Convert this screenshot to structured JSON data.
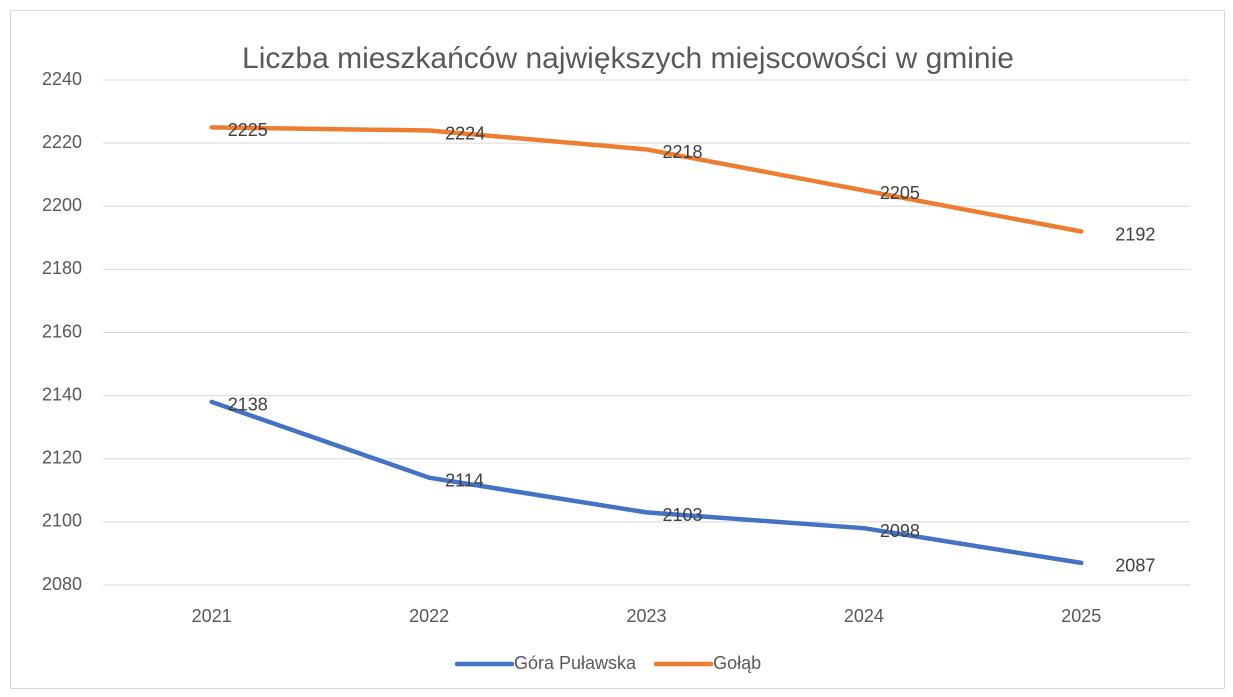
{
  "chart_data": {
    "type": "line",
    "title": "Liczba  mieszkańców największych miejscowości w gminie",
    "categories": [
      "2021",
      "2022",
      "2023",
      "2024",
      "2025"
    ],
    "series": [
      {
        "name": "Góra Puławska",
        "color": "#4472c4",
        "values": [
          2138,
          2114,
          2103,
          2098,
          2087
        ]
      },
      {
        "name": "Gołąb",
        "color": "#ed7d31",
        "values": [
          2225,
          2224,
          2218,
          2205,
          2192
        ]
      }
    ],
    "ylim": [
      2080,
      2240
    ],
    "yticks": [
      2080,
      2100,
      2120,
      2140,
      2160,
      2180,
      2200,
      2220,
      2240
    ],
    "grid": true,
    "legend": "bottom",
    "data_labels": true
  }
}
